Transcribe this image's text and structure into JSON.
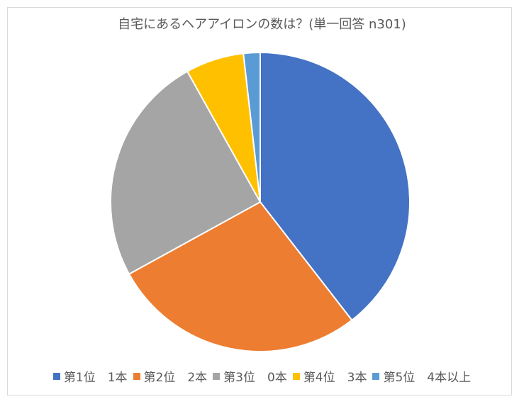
{
  "chart_data": {
    "type": "pie",
    "title": "自宅にあるヘアアイロンの数は？(単一回答 n301)",
    "categories": [
      "第1位　1本",
      "第2位　2本",
      "第3位　0本",
      "第4位　3本",
      "第5位　4本以上"
    ],
    "values": [
      39.5,
      27.5,
      24.9,
      6.3,
      1.8
    ],
    "colors": [
      "#4472C4",
      "#ED7D31",
      "#A5A5A5",
      "#FFC000",
      "#5B9BD5"
    ],
    "start_angle_deg": 0,
    "direction": "clockwise",
    "legend_position": "bottom",
    "data_labels": false
  }
}
